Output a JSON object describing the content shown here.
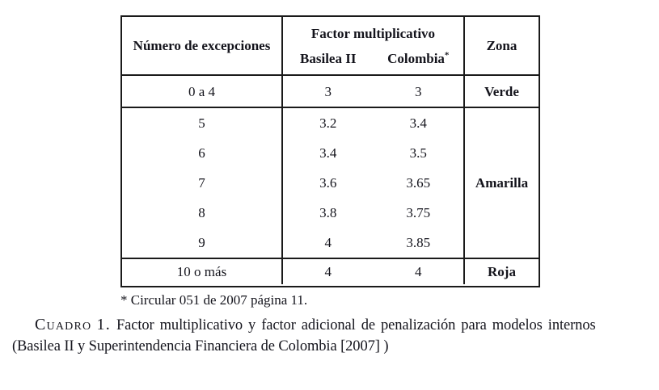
{
  "page": {
    "background": "#ffffff",
    "text_color": "#14141c",
    "line_color": "#1a1a1a"
  },
  "table": {
    "header": {
      "exceptions": "Número de excepciones",
      "factor_group": "Factor multiplicativo",
      "sub_basilea": "Basilea II",
      "sub_colombia": "Colombia",
      "footnote_marker": "*",
      "zona": "Zona"
    },
    "rows": [
      {
        "exceptions": "0 a 4",
        "basilea": "3",
        "colombia": "3",
        "zona": "Verde"
      },
      {
        "exceptions": "5",
        "basilea": "3.2",
        "colombia": "3.4"
      },
      {
        "exceptions": "6",
        "basilea": "3.4",
        "colombia": "3.5"
      },
      {
        "exceptions": "7",
        "basilea": "3.6",
        "colombia": "3.65",
        "zona": "Amarilla"
      },
      {
        "exceptions": "8",
        "basilea": "3.8",
        "colombia": "3.75"
      },
      {
        "exceptions": "9",
        "basilea": "4",
        "colombia": "3.85"
      },
      {
        "exceptions": "10 o más",
        "basilea": "4",
        "colombia": "4",
        "zona": "Roja"
      }
    ]
  },
  "footnote": "* Circular 051 de 2007 página 11.",
  "caption": {
    "label": "Cuadro 1.",
    "line1": "Factor multiplicativo y factor adicional de penalización para modelos internos",
    "line2": "(Basilea II y Superintendencia Financiera de Colombia [2007] )"
  }
}
